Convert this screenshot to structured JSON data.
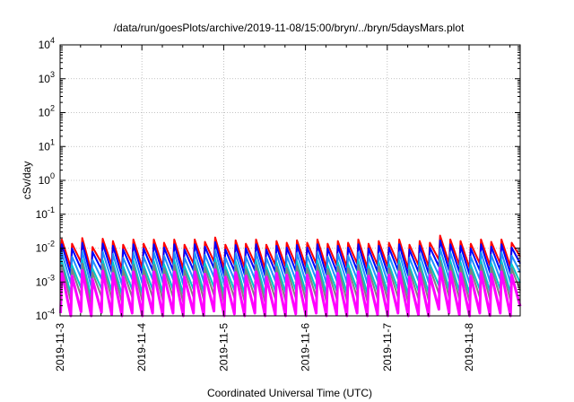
{
  "chart_data": {
    "type": "line",
    "title": "/data/run/goesPlots/archive/2019-11-08/15:00/bryn/../bryn/5daysMars.plot",
    "xlabel": "Coordinated Universal Time (UTC)",
    "ylabel": "cSv/day",
    "xlim": [
      "2019-11-03T00:00",
      "2019-11-08T15:00"
    ],
    "ylim": [
      0.0001,
      10000
    ],
    "y_scale": "log",
    "grid": true,
    "x_tick_labels": [
      "2019-11-3",
      "2019-11-4",
      "2019-11-5",
      "2019-11-6",
      "2019-11-7",
      "2019-11-8"
    ],
    "y_tick_labels": [
      {
        "base": "10",
        "exp": "4"
      },
      {
        "base": "10",
        "exp": "3"
      },
      {
        "base": "10",
        "exp": "2"
      },
      {
        "base": "10",
        "exp": "1"
      },
      {
        "base": "10",
        "exp": "0"
      },
      {
        "base": "10",
        "exp": "-1"
      },
      {
        "base": "10",
        "exp": "-2"
      },
      {
        "base": "10",
        "exp": "-3"
      },
      {
        "base": "10",
        "exp": "-4"
      }
    ],
    "sawtooth": {
      "period_hours": 3,
      "peak_times": [
        "2019-11-03T00:30",
        "2019-11-03T03:30",
        "2019-11-03T06:30",
        "2019-11-03T09:30",
        "2019-11-03T12:30",
        "2019-11-03T15:30",
        "2019-11-03T18:30",
        "2019-11-03T21:30",
        "2019-11-04T00:30",
        "2019-11-04T03:30",
        "2019-11-04T06:30",
        "2019-11-04T09:30",
        "2019-11-04T12:30",
        "2019-11-04T15:30",
        "2019-11-04T18:30",
        "2019-11-04T21:30",
        "2019-11-05T00:30",
        "2019-11-05T03:30",
        "2019-11-05T06:30",
        "2019-11-05T09:30",
        "2019-11-05T12:30",
        "2019-11-05T15:30",
        "2019-11-05T18:30",
        "2019-11-05T21:30",
        "2019-11-06T00:30",
        "2019-11-06T03:30",
        "2019-11-06T06:30",
        "2019-11-06T09:30",
        "2019-11-06T12:30",
        "2019-11-06T15:30",
        "2019-11-06T18:30",
        "2019-11-06T21:30",
        "2019-11-07T00:30",
        "2019-11-07T03:30",
        "2019-11-07T06:30",
        "2019-11-07T09:30",
        "2019-11-07T12:30",
        "2019-11-07T15:30",
        "2019-11-07T18:30",
        "2019-11-07T21:30",
        "2019-11-08T00:30",
        "2019-11-08T03:30",
        "2019-11-08T06:30",
        "2019-11-08T09:30",
        "2019-11-08T12:30"
      ],
      "peak_variation": [
        1.0,
        0.75,
        1.1,
        0.6,
        1.05,
        0.9,
        0.7,
        1.0,
        0.75,
        1.0,
        0.8,
        1.0,
        0.7,
        1.0,
        0.85,
        1.15,
        0.7,
        0.95,
        0.75,
        1.0,
        0.7,
        0.9,
        0.8,
        0.95,
        0.8,
        1.0,
        0.75,
        0.9,
        0.8,
        1.0,
        0.75,
        0.9,
        0.8,
        1.0,
        0.7,
        0.9,
        0.8,
        1.3,
        1.0,
        0.9,
        0.75,
        1.0,
        0.85,
        1.0,
        0.8
      ]
    },
    "series": [
      {
        "color": "#ff0000",
        "peak": 0.018,
        "trough": 0.0035,
        "width": 2.0
      },
      {
        "color": "#0000ff",
        "peak": 0.013,
        "trough": 0.0022,
        "width": 2.0
      },
      {
        "color": "#1e90ff",
        "peak": 0.0075,
        "trough": 0.0012,
        "width": 2.0
      },
      {
        "color": "#00c8c8",
        "peak": 0.0042,
        "trough": 0.0006,
        "width": 2.0
      },
      {
        "color": "#808080",
        "peak": 0.0032,
        "trough": 0.00035,
        "width": 2.0
      },
      {
        "color": "#ff00ff",
        "peak": 0.002,
        "trough": 0.00012,
        "width": 3.0
      }
    ]
  }
}
